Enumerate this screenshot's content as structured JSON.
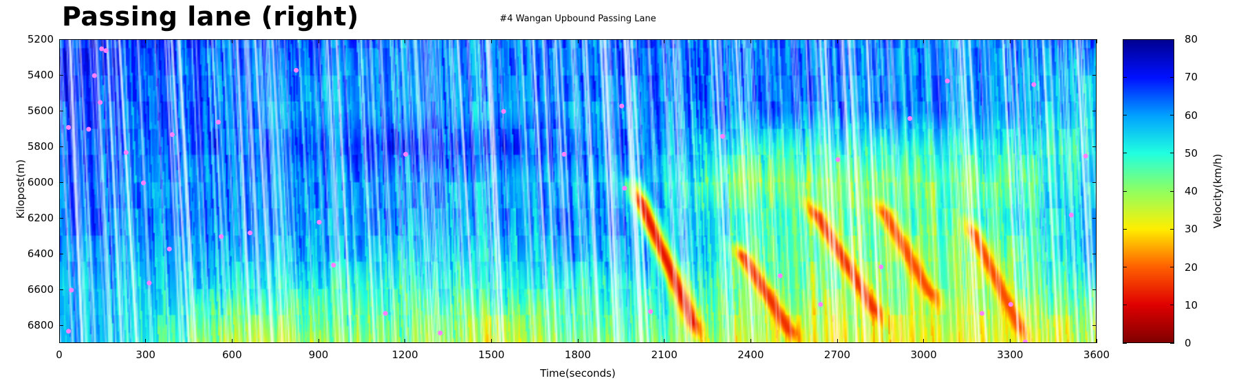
{
  "header": {
    "title": "Passing lane (right)",
    "subtitle": "#4 Wangan Upbound Passing Lane"
  },
  "chart_data": {
    "type": "heatmap",
    "title": "#4 Wangan Upbound Passing Lane",
    "xlabel": "Time(seconds)",
    "ylabel": "Kilopost(m)",
    "colorbar_label": "Velocity(km/h)",
    "xlim": [
      0,
      3600
    ],
    "ylim": [
      5200,
      6900
    ],
    "y_inverted": true,
    "x_ticks": [
      "0",
      "300",
      "600",
      "900",
      "1200",
      "1500",
      "1800",
      "2100",
      "2400",
      "2700",
      "3000",
      "3300",
      "3600"
    ],
    "y_ticks": [
      "5200",
      "5400",
      "5600",
      "5800",
      "6000",
      "6200",
      "6400",
      "6600",
      "6800"
    ],
    "colorbar_ticks": [
      "0",
      "10",
      "20",
      "30",
      "40",
      "50",
      "60",
      "70",
      "80"
    ],
    "clim": [
      0,
      80
    ],
    "colormap": [
      {
        "v": 0,
        "c": "#800000"
      },
      {
        "v": 10,
        "c": "#e00000"
      },
      {
        "v": 20,
        "c": "#ff6000"
      },
      {
        "v": 30,
        "c": "#ffee00"
      },
      {
        "v": 40,
        "c": "#90ff60"
      },
      {
        "v": 50,
        "c": "#20ffe0"
      },
      {
        "v": 60,
        "c": "#00a0ff"
      },
      {
        "v": 70,
        "c": "#0010ff"
      },
      {
        "v": 80,
        "c": "#000090"
      }
    ],
    "grid_time": [
      0,
      300,
      600,
      900,
      1200,
      1500,
      1800,
      2100,
      2400,
      2700,
      3000,
      3300,
      3600
    ],
    "grid_kilopost": [
      5200,
      5400,
      5600,
      5800,
      6000,
      6200,
      6400,
      6600,
      6800,
      6900
    ],
    "velocity_grid": [
      [
        70,
        68,
        65,
        65,
        62,
        62,
        62,
        65,
        62,
        62,
        62,
        62,
        65
      ],
      [
        70,
        65,
        62,
        62,
        60,
        62,
        62,
        65,
        62,
        62,
        62,
        60,
        55
      ],
      [
        68,
        65,
        62,
        60,
        60,
        60,
        60,
        62,
        62,
        62,
        62,
        60,
        55
      ],
      [
        68,
        62,
        65,
        65,
        68,
        68,
        65,
        60,
        50,
        50,
        50,
        52,
        50
      ],
      [
        65,
        60,
        62,
        60,
        60,
        60,
        58,
        55,
        40,
        40,
        42,
        45,
        55
      ],
      [
        65,
        62,
        62,
        60,
        60,
        60,
        62,
        60,
        48,
        42,
        45,
        50,
        58
      ],
      [
        62,
        58,
        58,
        58,
        55,
        55,
        58,
        60,
        45,
        42,
        40,
        45,
        58
      ],
      [
        58,
        55,
        52,
        50,
        48,
        50,
        50,
        50,
        42,
        40,
        40,
        42,
        50
      ],
      [
        60,
        52,
        40,
        45,
        42,
        38,
        45,
        45,
        38,
        32,
        35,
        35,
        40
      ],
      [
        60,
        50,
        35,
        40,
        40,
        35,
        42,
        42,
        35,
        30,
        32,
        32,
        38
      ]
    ],
    "congestion_waves": [
      {
        "t0": 1990,
        "kp0": 6000,
        "t1": 2230,
        "kp1": 6900,
        "vmin": 12
      },
      {
        "t0": 2350,
        "kp0": 6350,
        "t1": 2560,
        "kp1": 6900,
        "vmin": 15
      },
      {
        "t0": 2600,
        "kp0": 6100,
        "t1": 2860,
        "kp1": 6800,
        "vmin": 15
      },
      {
        "t0": 2840,
        "kp0": 6100,
        "t1": 3050,
        "kp1": 6700,
        "vmin": 18
      },
      {
        "t0": 3150,
        "kp0": 6200,
        "t1": 3360,
        "kp1": 6900,
        "vmin": 18
      }
    ],
    "markers": [
      [
        120,
        5400
      ],
      [
        145,
        5250
      ],
      [
        160,
        5260
      ],
      [
        140,
        5550
      ],
      [
        100,
        5700
      ],
      [
        30,
        5690
      ],
      [
        230,
        5830
      ],
      [
        290,
        6000
      ],
      [
        390,
        5730
      ],
      [
        380,
        6370
      ],
      [
        310,
        6560
      ],
      [
        40,
        6600
      ],
      [
        30,
        6830
      ],
      [
        550,
        5660
      ],
      [
        560,
        6300
      ],
      [
        660,
        6280
      ],
      [
        820,
        5370
      ],
      [
        900,
        6220
      ],
      [
        950,
        6460
      ],
      [
        1200,
        5840
      ],
      [
        1130,
        6730
      ],
      [
        1320,
        6840
      ],
      [
        1540,
        5600
      ],
      [
        1750,
        5840
      ],
      [
        1950,
        5570
      ],
      [
        1960,
        6030
      ],
      [
        2050,
        6720
      ],
      [
        2300,
        5740
      ],
      [
        2500,
        6520
      ],
      [
        2700,
        5870
      ],
      [
        2850,
        6470
      ],
      [
        3080,
        5430
      ],
      [
        3200,
        6730
      ],
      [
        3300,
        6680
      ],
      [
        3380,
        5450
      ],
      [
        3510,
        6180
      ],
      [
        3560,
        5850
      ],
      [
        3350,
        6890
      ],
      [
        2950,
        5640
      ],
      [
        2640,
        6680
      ]
    ],
    "marker_color": "#ff80ff"
  }
}
